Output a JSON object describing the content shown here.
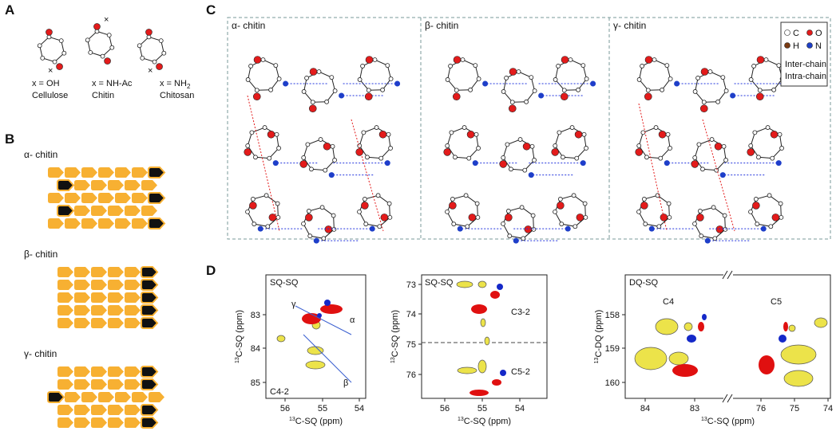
{
  "panelA": {
    "label": "A",
    "items": [
      {
        "x": "x = OH",
        "name": "Cellulose"
      },
      {
        "x": "x = NH-Ac",
        "name": "Chitin"
      },
      {
        "x": "x = NH",
        "sub": "2",
        "name": "Chitosan"
      }
    ]
  },
  "panelB": {
    "label": "B",
    "titles": [
      "α- chitin",
      "β- chitin",
      "γ- chitin"
    ]
  },
  "panelC": {
    "label": "C",
    "titles": [
      "α- chitin",
      "β- chitin",
      "γ- chitin"
    ],
    "legend": {
      "atoms": [
        "C",
        "O",
        "H",
        "N"
      ],
      "inter": "Inter-chain",
      "intra": "Intra-chain"
    }
  },
  "panelD": {
    "label": "D",
    "plots": [
      {
        "corner": "SQ-SQ",
        "ylabel": {
          "sup": "13",
          "text": "C-SQ (ppm)"
        },
        "xlabel": {
          "sup": "13",
          "text": "C-SQ (ppm)"
        },
        "yticks": [
          83,
          84,
          85
        ],
        "xticks": [
          56,
          55,
          54
        ],
        "annotations": [
          "C4-2",
          "γ",
          "α",
          "β"
        ]
      },
      {
        "corner": "SQ-SQ",
        "ylabel": {
          "sup": "13",
          "text": "C-SQ (ppm)"
        },
        "xlabel": {
          "sup": "13",
          "text": "C-SQ (ppm)"
        },
        "yticks": [
          73,
          74,
          75,
          76
        ],
        "xticks": [
          56,
          55,
          54
        ],
        "annotations": [
          "C3-2",
          "C5-2"
        ]
      },
      {
        "corner": "DQ-SQ",
        "ylabel": {
          "sup": "13",
          "text": "C-DQ (ppm)"
        },
        "xlabel": {
          "sup": "13",
          "text": "C-SQ (ppm)"
        },
        "yticks": [
          158,
          159,
          160
        ],
        "xticks": [
          84,
          83,
          76,
          75,
          74
        ],
        "annotations": [
          "C4",
          "C5"
        ]
      }
    ]
  }
}
